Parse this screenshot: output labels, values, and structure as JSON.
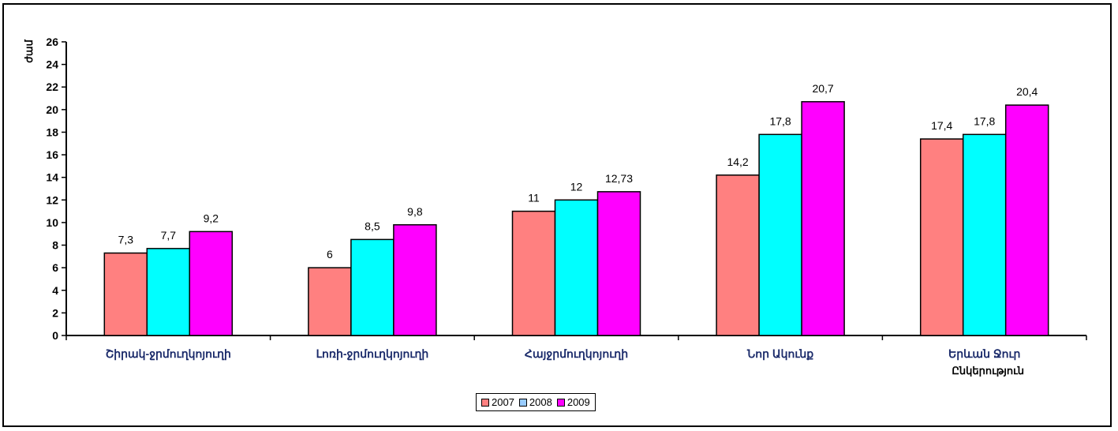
{
  "chart_data": {
    "type": "bar",
    "title": "",
    "xlabel": "Ընկերություն",
    "ylabel": "ժամ",
    "ylim": [
      0,
      26
    ],
    "yticks": [
      0,
      2,
      4,
      6,
      8,
      10,
      12,
      14,
      16,
      18,
      20,
      22,
      24,
      26
    ],
    "grid": false,
    "legend_position": "bottom",
    "categories": [
      "Շիրակ-ջրմուղկոյուղի",
      "Լոռի-ջրմուղկոյուղի",
      "Հայջրմուղկոյուղի",
      "Նոր Ակունք",
      "Երևան Ջուր"
    ],
    "series": [
      {
        "name": "2007",
        "color": "#ff8080",
        "values": [
          7.3,
          6,
          11,
          14.2,
          17.4
        ],
        "labels": [
          "7,3",
          "6",
          "11",
          "14,2",
          "17,4"
        ]
      },
      {
        "name": "2008",
        "color": "#00ffff",
        "values": [
          7.7,
          8.5,
          12,
          17.8,
          17.8
        ],
        "labels": [
          "7,7",
          "8,5",
          "12",
          "17,8",
          "17,8"
        ]
      },
      {
        "name": "2009",
        "color": "#ff00ff",
        "values": [
          9.2,
          9.8,
          12.73,
          20.7,
          20.4
        ],
        "labels": [
          "9,2",
          "9,8",
          "12,73",
          "20,7",
          "20,4"
        ]
      }
    ]
  },
  "legend": {
    "items": [
      {
        "label": "2007",
        "color": "#ff8080"
      },
      {
        "label": "2008",
        "color": "#99ccff"
      },
      {
        "label": "2009",
        "color": "#ff00ff"
      }
    ]
  }
}
